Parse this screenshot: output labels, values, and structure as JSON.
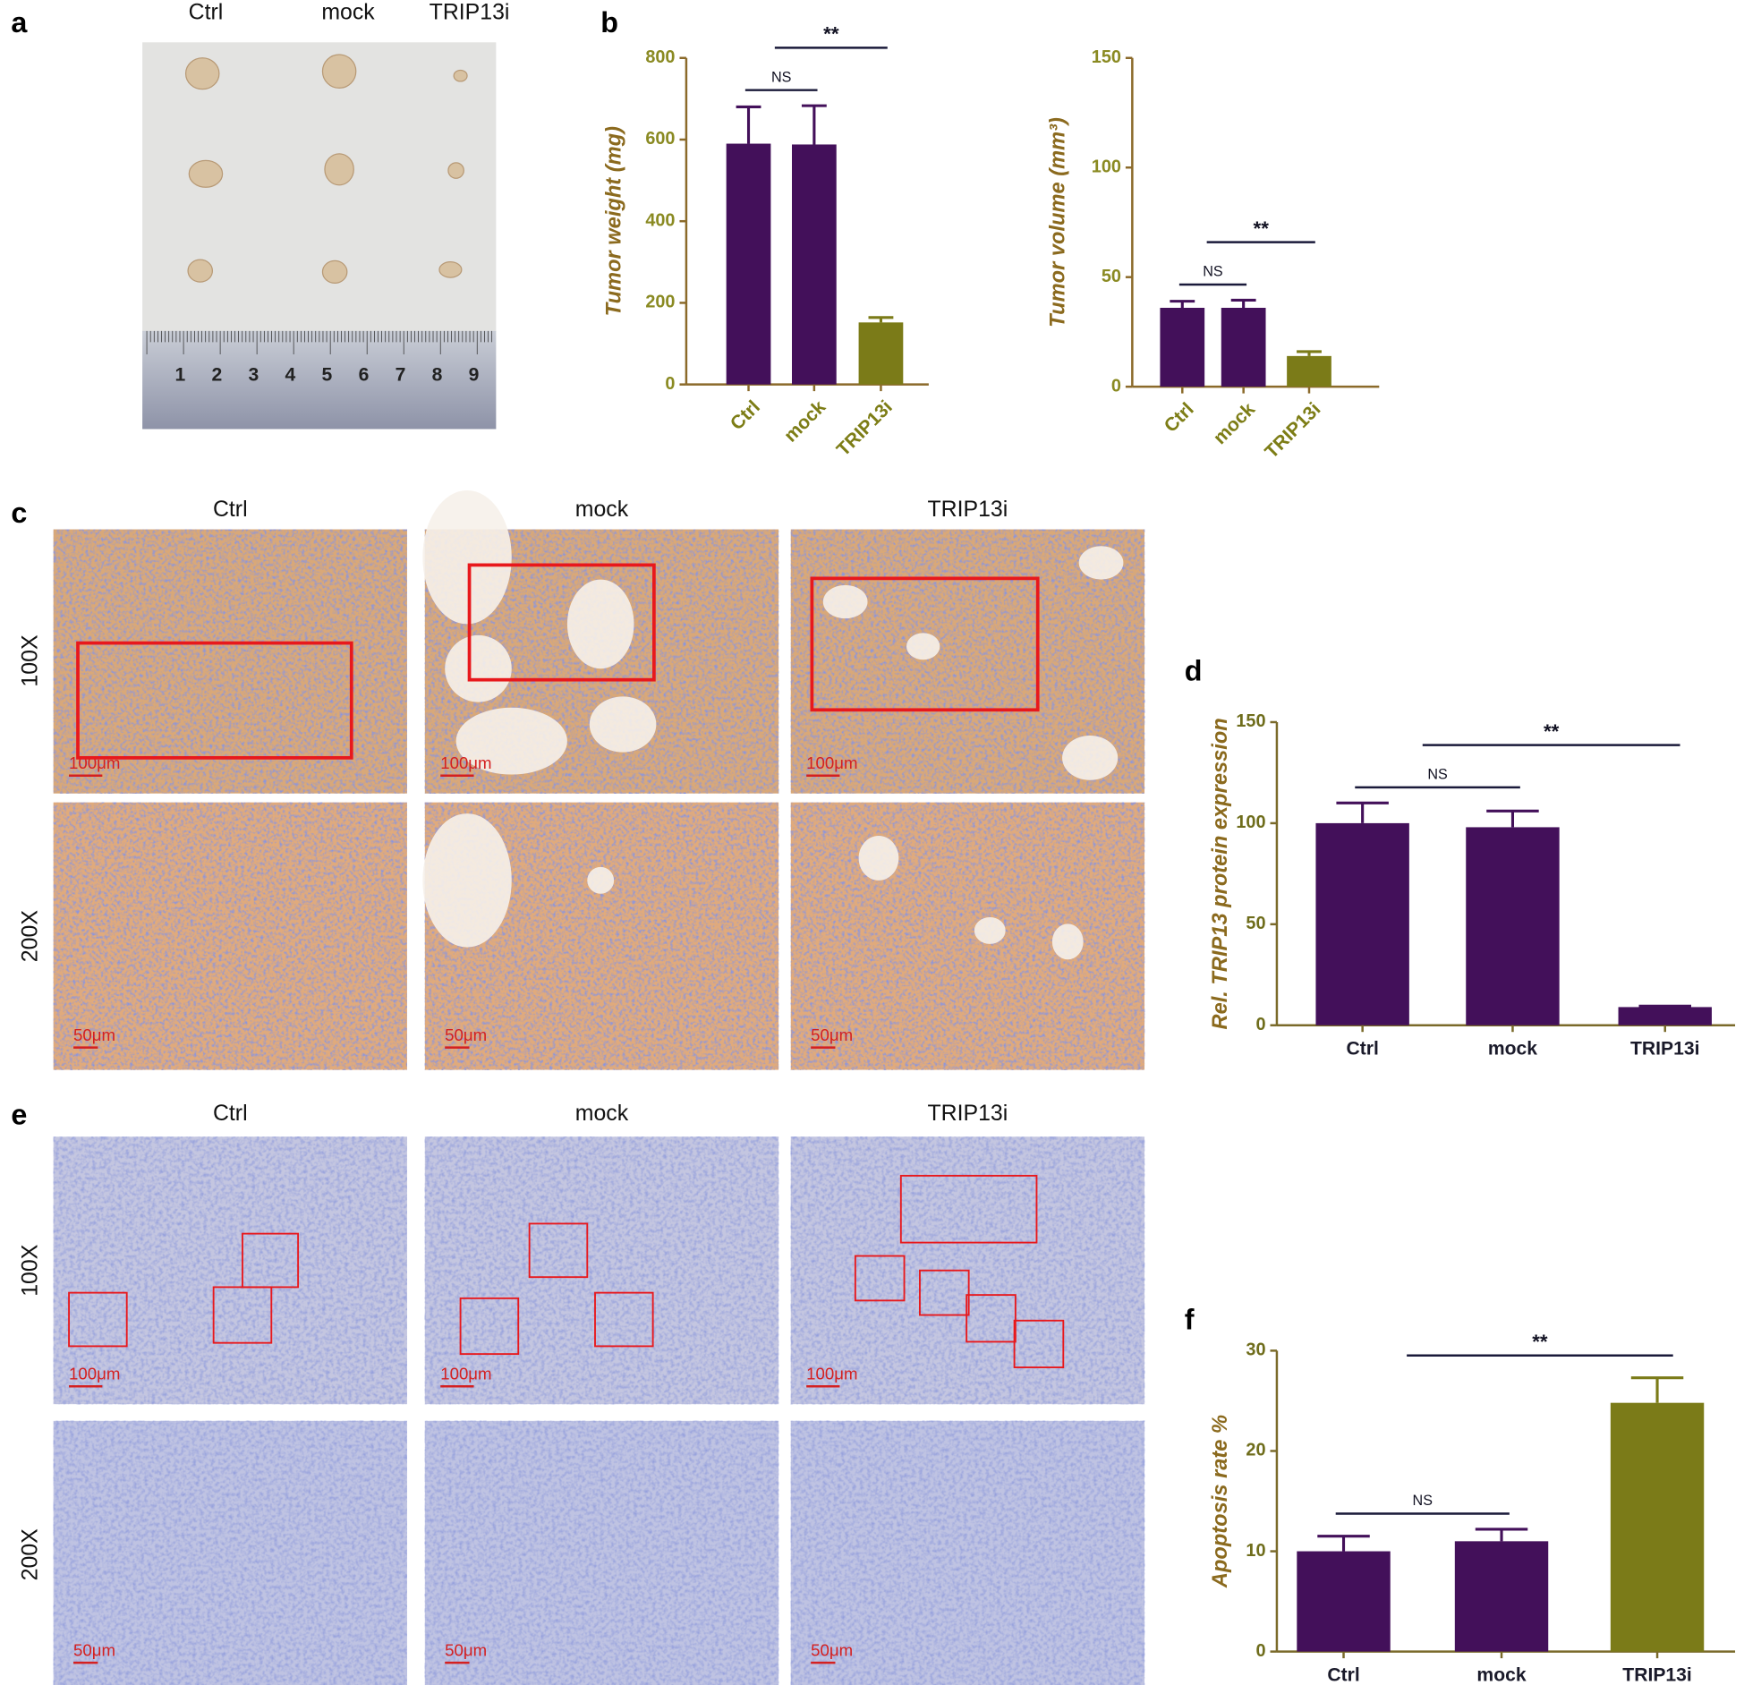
{
  "panel_labels": [
    "a",
    "b",
    "c",
    "d",
    "e",
    "f"
  ],
  "panel_a": {
    "columns": [
      "Ctrl",
      "mock",
      "TRIP13i"
    ],
    "ruler_numbers": [
      "1",
      "2",
      "3",
      "4",
      "5",
      "6",
      "7",
      "8",
      "9"
    ]
  },
  "panel_c": {
    "columns": [
      "Ctrl",
      "mock",
      "TRIP13i"
    ],
    "rows": [
      "100X",
      "200X"
    ],
    "scale_bars": [
      [
        "100μm",
        "100μm",
        "100μm"
      ],
      [
        "50μm",
        "50μm",
        "50μm"
      ]
    ]
  },
  "panel_e": {
    "columns": [
      "Ctrl",
      "mock",
      "TRIP13i"
    ],
    "rows": [
      "100X",
      "200X"
    ],
    "scale_bars": [
      [
        "100μm",
        "100μm",
        "100μm"
      ],
      [
        "50μm",
        "50μm",
        "50μm"
      ]
    ]
  },
  "chart_data": [
    {
      "type": "bar",
      "y_label": "Tumor weight (mg)",
      "categories": [
        "Ctrl",
        "mock",
        "TRIP13i"
      ],
      "values": [
        590,
        588,
        152
      ],
      "errors": [
        90,
        95,
        12
      ],
      "colors": [
        "#43105a",
        "#43105a",
        "#7b7b18"
      ],
      "ylim": [
        0,
        800
      ],
      "yticks": [
        0,
        200,
        400,
        600,
        800
      ],
      "annotations": [
        "NS",
        "**"
      ]
    },
    {
      "type": "bar",
      "y_label": "Tumor volume (mm³)",
      "categories": [
        "Ctrl",
        "mock",
        "TRIP13i"
      ],
      "values": [
        36,
        36,
        14
      ],
      "errors": [
        3,
        3.5,
        2
      ],
      "colors": [
        "#43105a",
        "#43105a",
        "#7b7b18"
      ],
      "ylim": [
        0,
        150
      ],
      "yticks": [
        0,
        50,
        100,
        150
      ],
      "annotations": [
        "NS",
        "**"
      ]
    },
    {
      "type": "bar",
      "y_label": "Rel. TRIP13  protein expression",
      "categories": [
        "Ctrl",
        "mock",
        "TRIP13i"
      ],
      "values": [
        100,
        98,
        9
      ],
      "errors": [
        10,
        8,
        0.5
      ],
      "colors": [
        "#43105a",
        "#43105a",
        "#43105a"
      ],
      "ylim": [
        0,
        150
      ],
      "yticks": [
        0,
        50,
        100,
        150
      ],
      "annotations": [
        "NS",
        "**"
      ]
    },
    {
      "type": "bar",
      "y_label": "Apoptosis rate %",
      "categories": [
        "Ctrl",
        "mock",
        "TRIP13i"
      ],
      "values": [
        10,
        11,
        24.8
      ],
      "errors": [
        1.5,
        1.2,
        2.5
      ],
      "colors": [
        "#43105a",
        "#43105a",
        "#7b7b18"
      ],
      "ylim": [
        0,
        30
      ],
      "yticks": [
        0,
        10,
        20,
        30
      ],
      "annotations": [
        "NS",
        "**"
      ]
    }
  ]
}
